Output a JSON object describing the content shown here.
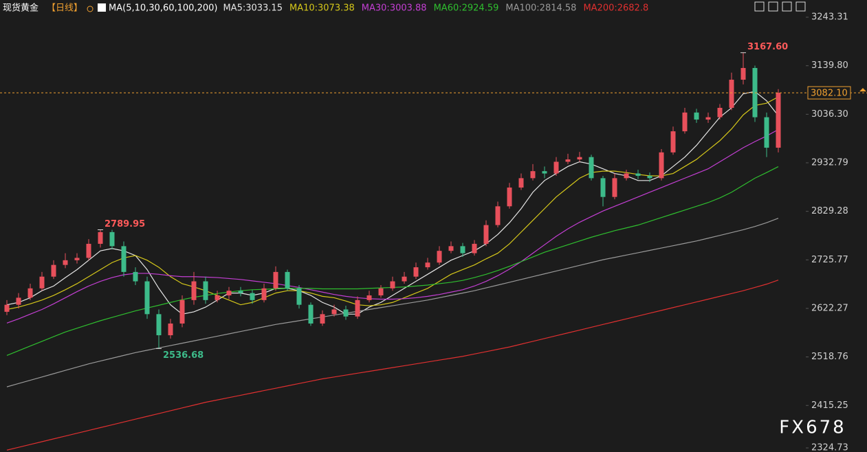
{
  "header": {
    "instrument": "现货黄金",
    "period": "【日线】",
    "indicator": "MA(5,10,30,60,100,200)"
  },
  "watermark": "FX678",
  "chart_data": {
    "type": "candlestick",
    "grid": false,
    "ylim": [
      2316,
      3280
    ],
    "yticks": [
      3243.31,
      {
        "value": 3139.8,
        "label": "3139.80"
      },
      {
        "value": 3036.3,
        "label": "3036.30"
      },
      2932.79,
      2829.28,
      2725.77,
      2622.27,
      2518.76,
      2415.25,
      2324.73
    ],
    "up_color": "#e8505b",
    "down_color": "#3dbb8a",
    "last_price": {
      "value": 3082.1,
      "label": "3082.10",
      "color": "#f0a030"
    },
    "annotations": [
      {
        "text": "3167.60",
        "value": 3167.6,
        "color": "#ff5a5a"
      },
      {
        "text": "2789.95",
        "value": 2789.95,
        "color": "#ff5a5a"
      },
      {
        "text": "2536.68",
        "value": 2536.68,
        "color": "#3dbb8a"
      }
    ],
    "open": [
      2615,
      2630,
      2645,
      2665,
      2690,
      2715,
      2725,
      2730,
      2760,
      2785,
      2755,
      2700,
      2680,
      2610,
      2565,
      2590,
      2640,
      2680,
      2640,
      2650,
      2660,
      2655,
      2640,
      2665,
      2700,
      2665,
      2630,
      2590,
      2610,
      2620,
      2605,
      2640,
      2650,
      2665,
      2680,
      2690,
      2710,
      2720,
      2745,
      2755,
      2740,
      2760,
      2800,
      2840,
      2880,
      2900,
      2915,
      2910,
      2935,
      2940,
      2945,
      2900,
      2860,
      2900,
      2910,
      2905,
      2900,
      2955,
      3000,
      3040,
      3025,
      3030,
      3050,
      3110,
      3135,
      3030,
      2965
    ],
    "high": [
      2640,
      2655,
      2675,
      2700,
      2725,
      2740,
      2740,
      2770,
      2789.95,
      2790,
      2765,
      2710,
      2690,
      2620,
      2600,
      2650,
      2700,
      2690,
      2660,
      2668,
      2668,
      2662,
      2675,
      2712,
      2705,
      2672,
      2635,
      2618,
      2630,
      2628,
      2648,
      2660,
      2672,
      2690,
      2700,
      2720,
      2730,
      2755,
      2765,
      2762,
      2768,
      2810,
      2850,
      2890,
      2910,
      2930,
      2925,
      2945,
      2952,
      2956,
      2950,
      2905,
      2910,
      2918,
      2918,
      2912,
      2962,
      3010,
      3050,
      3048,
      3040,
      3058,
      3125,
      3167.6,
      3140,
      3040,
      3090
    ],
    "low": [
      2608,
      2622,
      2640,
      2660,
      2685,
      2708,
      2718,
      2725,
      2752,
      2748,
      2690,
      2672,
      2600,
      2536.68,
      2558,
      2582,
      2630,
      2632,
      2635,
      2642,
      2648,
      2632,
      2635,
      2660,
      2660,
      2622,
      2585,
      2585,
      2605,
      2598,
      2600,
      2635,
      2645,
      2660,
      2675,
      2685,
      2705,
      2715,
      2740,
      2732,
      2735,
      2755,
      2795,
      2835,
      2875,
      2895,
      2900,
      2905,
      2930,
      2935,
      2895,
      2840,
      2855,
      2895,
      2898,
      2892,
      2895,
      2950,
      2995,
      3018,
      3018,
      3025,
      3045,
      3100,
      3020,
      2945,
      2955
    ],
    "close": [
      2630,
      2645,
      2665,
      2690,
      2715,
      2725,
      2730,
      2760,
      2785,
      2755,
      2700,
      2680,
      2610,
      2565,
      2590,
      2640,
      2680,
      2640,
      2650,
      2660,
      2655,
      2640,
      2665,
      2700,
      2665,
      2630,
      2590,
      2610,
      2620,
      2605,
      2640,
      2650,
      2665,
      2680,
      2690,
      2710,
      2720,
      2745,
      2755,
      2740,
      2760,
      2800,
      2840,
      2880,
      2900,
      2915,
      2910,
      2935,
      2940,
      2945,
      2900,
      2860,
      2900,
      2910,
      2905,
      2900,
      2955,
      3000,
      3040,
      3025,
      3030,
      3050,
      3110,
      3135,
      3030,
      2965,
      3082.1
    ],
    "series": [
      {
        "name": "MA5:3033.15",
        "color": "#e6e6e6",
        "values": [
          2630,
          2635,
          2645,
          2660,
          2670,
          2688,
          2705,
          2725,
          2745,
          2750,
          2745,
          2735,
          2705,
          2665,
          2630,
          2610,
          2615,
          2625,
          2640,
          2655,
          2655,
          2650,
          2655,
          2665,
          2665,
          2660,
          2650,
          2635,
          2625,
          2610,
          2610,
          2625,
          2635,
          2650,
          2665,
          2680,
          2695,
          2710,
          2725,
          2735,
          2745,
          2760,
          2780,
          2805,
          2835,
          2870,
          2895,
          2910,
          2925,
          2935,
          2930,
          2920,
          2910,
          2905,
          2895,
          2895,
          2905,
          2925,
          2945,
          2970,
          3000,
          3030,
          3050,
          3080,
          3085,
          3065,
          3033.15
        ]
      },
      {
        "name": "MA10:3073.38",
        "color": "#d6c81a",
        "values": [
          2620,
          2625,
          2632,
          2640,
          2650,
          2662,
          2675,
          2690,
          2705,
          2720,
          2730,
          2735,
          2725,
          2710,
          2690,
          2675,
          2668,
          2660,
          2650,
          2640,
          2630,
          2635,
          2645,
          2655,
          2660,
          2660,
          2655,
          2648,
          2645,
          2638,
          2630,
          2628,
          2630,
          2635,
          2645,
          2655,
          2665,
          2680,
          2695,
          2705,
          2715,
          2728,
          2740,
          2760,
          2785,
          2810,
          2835,
          2860,
          2880,
          2900,
          2912,
          2915,
          2915,
          2912,
          2908,
          2905,
          2905,
          2910,
          2925,
          2940,
          2960,
          2980,
          3005,
          3035,
          3055,
          3060,
          3073.38
        ]
      },
      {
        "name": "MA30:3003.88",
        "color": "#c43fd4",
        "values": [
          2591,
          2600,
          2610,
          2620,
          2632,
          2645,
          2658,
          2670,
          2680,
          2688,
          2694,
          2697,
          2697,
          2695,
          2692,
          2690,
          2690,
          2689,
          2688,
          2686,
          2684,
          2681,
          2678,
          2675,
          2671,
          2667,
          2662,
          2657,
          2652,
          2648,
          2645,
          2643,
          2642,
          2642,
          2643,
          2645,
          2648,
          2652,
          2657,
          2662,
          2670,
          2680,
          2692,
          2706,
          2722,
          2740,
          2758,
          2776,
          2792,
          2806,
          2818,
          2830,
          2840,
          2850,
          2860,
          2870,
          2880,
          2890,
          2900,
          2910,
          2920,
          2935,
          2950,
          2965,
          2978,
          2990,
          3003.88
        ]
      },
      {
        "name": "MA60:2924.59",
        "color": "#2fbf2f",
        "values": [
          2522,
          2532,
          2542,
          2552,
          2562,
          2572,
          2580,
          2588,
          2596,
          2603,
          2610,
          2617,
          2623,
          2629,
          2635,
          2641,
          2646,
          2650,
          2654,
          2657,
          2660,
          2662,
          2663,
          2664,
          2665,
          2665,
          2665,
          2664,
          2664,
          2664,
          2664,
          2665,
          2666,
          2667,
          2668,
          2670,
          2672,
          2675,
          2678,
          2682,
          2688,
          2695,
          2703,
          2712,
          2722,
          2732,
          2742,
          2750,
          2758,
          2766,
          2774,
          2781,
          2788,
          2794,
          2800,
          2808,
          2816,
          2824,
          2832,
          2840,
          2848,
          2858,
          2870,
          2885,
          2900,
          2912,
          2924.59
        ]
      },
      {
        "name": "MA100:2814.58",
        "color": "#9a9a9a",
        "values": [
          2455,
          2462,
          2469,
          2476,
          2483,
          2490,
          2497,
          2504,
          2510,
          2516,
          2522,
          2528,
          2533,
          2538,
          2543,
          2548,
          2553,
          2558,
          2563,
          2568,
          2573,
          2578,
          2583,
          2588,
          2592,
          2596,
          2600,
          2604,
          2608,
          2612,
          2616,
          2620,
          2624,
          2628,
          2632,
          2636,
          2640,
          2645,
          2650,
          2655,
          2660,
          2666,
          2672,
          2678,
          2684,
          2690,
          2696,
          2702,
          2708,
          2714,
          2720,
          2726,
          2731,
          2736,
          2741,
          2746,
          2751,
          2756,
          2761,
          2766,
          2772,
          2778,
          2784,
          2790,
          2797,
          2805,
          2814.58
        ]
      },
      {
        "name": "MA200:2682.8",
        "color": "#e03030",
        "values": [
          2320,
          2326,
          2332,
          2338,
          2344,
          2350,
          2356,
          2362,
          2368,
          2374,
          2380,
          2386,
          2392,
          2398,
          2404,
          2410,
          2416,
          2422,
          2427,
          2432,
          2437,
          2442,
          2447,
          2452,
          2457,
          2462,
          2467,
          2472,
          2476,
          2480,
          2484,
          2488,
          2492,
          2496,
          2500,
          2504,
          2508,
          2512,
          2516,
          2520,
          2525,
          2530,
          2535,
          2540,
          2546,
          2552,
          2558,
          2564,
          2570,
          2576,
          2582,
          2588,
          2594,
          2600,
          2606,
          2612,
          2618,
          2624,
          2630,
          2636,
          2642,
          2648,
          2654,
          2660,
          2667,
          2674,
          2682.8
        ]
      }
    ]
  }
}
